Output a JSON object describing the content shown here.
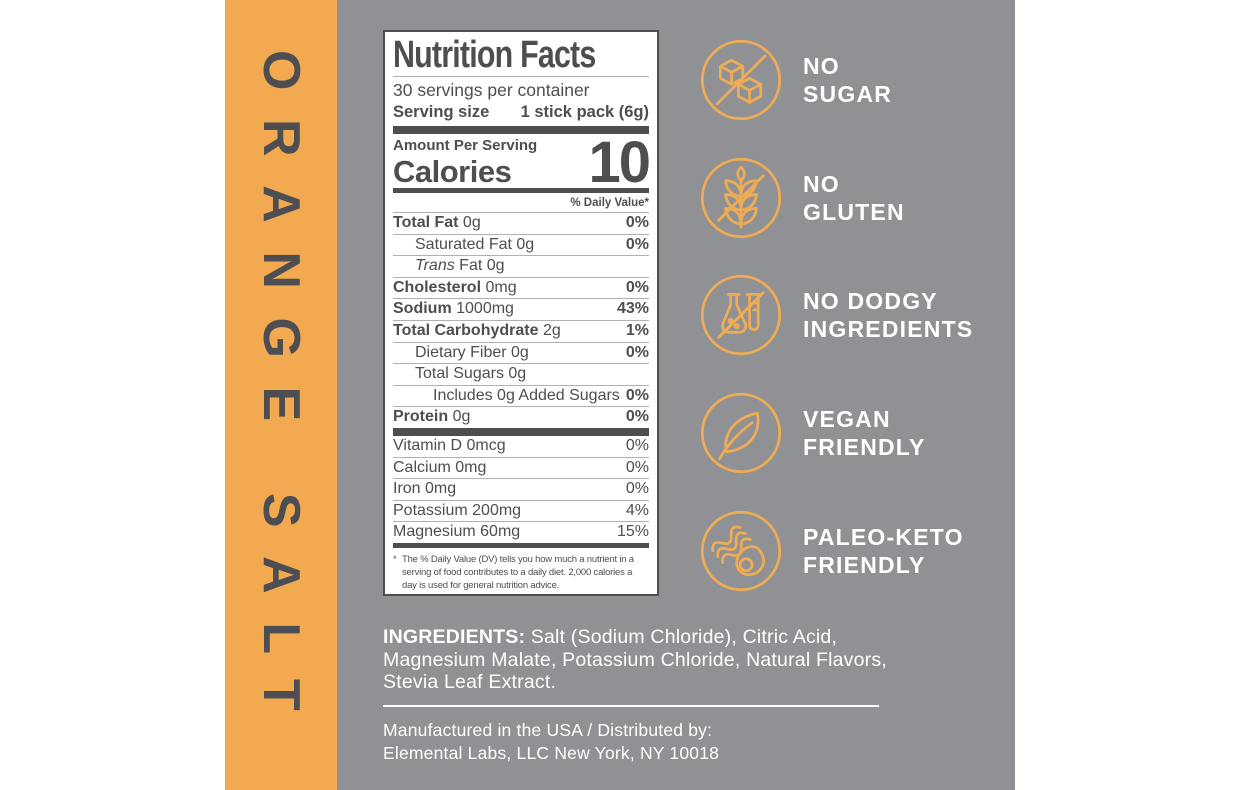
{
  "flavor": "ORANGE SALT",
  "nutrition": {
    "title": "Nutrition Facts",
    "servings_per_container": "30 servings per container",
    "serving_size_label": "Serving size",
    "serving_size_value": "1 stick pack (6g)",
    "amount_per_serving": "Amount Per Serving",
    "calories_label": "Calories",
    "calories_value": "10",
    "daily_value_header": "% Daily Value*",
    "main_rows": [
      {
        "bold": "Total Fat",
        "rest": " 0g",
        "dv": "0%",
        "indent": 0
      },
      {
        "rest": "Saturated Fat 0g",
        "dv": "0%",
        "indent": 1
      },
      {
        "italic": "Trans",
        "rest": " Fat 0g",
        "dv": "",
        "indent": 1
      },
      {
        "bold": "Cholesterol",
        "rest": " 0mg",
        "dv": "0%",
        "indent": 0
      },
      {
        "bold": "Sodium",
        "rest": " 1000mg",
        "dv": "43%",
        "indent": 0
      },
      {
        "bold": "Total Carbohydrate",
        "rest": " 2g",
        "dv": "1%",
        "indent": 0
      },
      {
        "rest": "Dietary Fiber 0g",
        "dv": "0%",
        "indent": 1
      },
      {
        "rest": "Total Sugars 0g",
        "dv": "",
        "indent": 1
      },
      {
        "rest": "Includes 0g Added Sugars",
        "dv": "0%",
        "indent": 2
      },
      {
        "bold": "Protein",
        "rest": " 0g",
        "dv": "0%",
        "indent": 0
      }
    ],
    "vitamin_rows": [
      {
        "rest": "Vitamin D 0mcg",
        "dv": "0%",
        "indent": 0
      },
      {
        "rest": "Calcium 0mg",
        "dv": "0%",
        "indent": 0
      },
      {
        "rest": "Iron 0mg",
        "dv": "0%",
        "indent": 0
      },
      {
        "rest": "Potassium 200mg",
        "dv": "4%",
        "indent": 0
      },
      {
        "rest": "Magnesium 60mg",
        "dv": "15%",
        "indent": 0
      }
    ],
    "footnote_marker": "*",
    "footnote_text": "The % Daily Value (DV) tells you how much a nutrient in a serving of food contributes to a daily diet. 2,000 calories a day is used for general nutrition advice."
  },
  "badges": [
    {
      "icon": "no-sugar-icon",
      "lines": [
        "NO",
        "SUGAR"
      ]
    },
    {
      "icon": "no-gluten-icon",
      "lines": [
        "NO",
        "GLUTEN"
      ]
    },
    {
      "icon": "no-dodgy-ingredients-icon",
      "lines": [
        "NO DODGY",
        "INGREDIENTS"
      ]
    },
    {
      "icon": "vegan-friendly-icon",
      "lines": [
        "VEGAN",
        "FRIENDLY"
      ]
    },
    {
      "icon": "paleo-keto-friendly-icon",
      "lines": [
        "PALEO-KETO",
        "FRIENDLY"
      ]
    }
  ],
  "ingredients": {
    "label": "INGREDIENTS:",
    "text": " Salt (Sodium Chloride), Citric Acid, Magnesium Malate, Potassium Chloride, Natural Flavors, Stevia Leaf Extract."
  },
  "footer": {
    "line1": "Manufactured in the USA / Distributed by:",
    "line2": "Elemental Labs, LLC New York, NY 10018"
  },
  "colors": {
    "accent_orange": "#F3A950",
    "icon_orange": "#EFAC55",
    "background_gray": "#8F9194",
    "panel_text_dark": "#4D4E50",
    "text_white": "#FFFFFF"
  }
}
